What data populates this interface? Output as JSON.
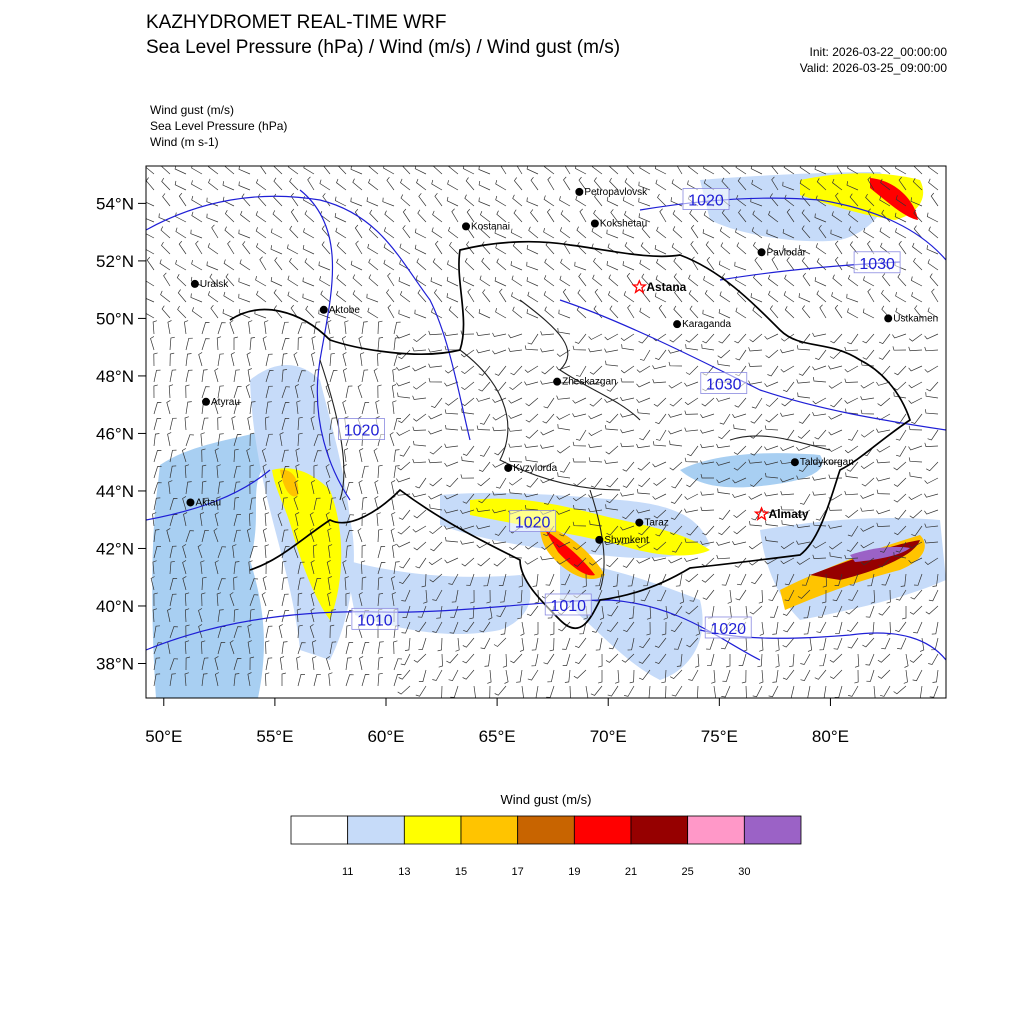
{
  "header": {
    "title": "KAZHYDROMET REAL-TIME WRF",
    "subtitle": "Sea Level Pressure  (hPa) / Wind  (m/s) / Wind gust  (m/s)",
    "init": "Init: 2026-03-22_00:00:00",
    "valid": "Valid: 2026-03-25_09:00:00"
  },
  "fields": {
    "gust": "Wind gust   (m/s)",
    "slp": "Sea Level Pressure   (hPa)",
    "wind": "Wind   (m s-1)"
  },
  "axes": {
    "lat_labels": [
      "54°N",
      "52°N",
      "50°N",
      "48°N",
      "46°N",
      "44°N",
      "42°N",
      "40°N",
      "38°N"
    ],
    "lon_labels": [
      "50°E",
      "55°E",
      "60°E",
      "65°E",
      "70°E",
      "75°E",
      "80°E"
    ],
    "lat_range": [
      36.8,
      55.3
    ],
    "lon_range": [
      49.2,
      85.2
    ]
  },
  "cities": [
    {
      "name": "Petropavlovsk",
      "lon": 68.7,
      "lat": 54.4,
      "capital": false
    },
    {
      "name": "Kostanai",
      "lon": 63.6,
      "lat": 53.2,
      "capital": false
    },
    {
      "name": "Kokshetau",
      "lon": 69.4,
      "lat": 53.3,
      "capital": false
    },
    {
      "name": "Pavlodar",
      "lon": 76.9,
      "lat": 52.3,
      "capital": false
    },
    {
      "name": "Uralsk",
      "lon": 51.4,
      "lat": 51.2,
      "capital": false
    },
    {
      "name": "Astana",
      "lon": 71.4,
      "lat": 51.1,
      "capital": true
    },
    {
      "name": "Ustkamen",
      "lon": 82.6,
      "lat": 50.0,
      "capital": false
    },
    {
      "name": "Aktobe",
      "lon": 57.2,
      "lat": 50.3,
      "capital": false
    },
    {
      "name": "Karaganda",
      "lon": 73.1,
      "lat": 49.8,
      "capital": false
    },
    {
      "name": "Atyrau",
      "lon": 51.9,
      "lat": 47.1,
      "capital": false
    },
    {
      "name": "Zheskazgan",
      "lon": 67.7,
      "lat": 47.8,
      "capital": false
    },
    {
      "name": "Taldykorgan",
      "lon": 78.4,
      "lat": 45.0,
      "capital": false
    },
    {
      "name": "Kyzylorda",
      "lon": 65.5,
      "lat": 44.8,
      "capital": false
    },
    {
      "name": "Aktau",
      "lon": 51.2,
      "lat": 43.6,
      "capital": false
    },
    {
      "name": "Almaty",
      "lon": 76.9,
      "lat": 43.2,
      "capital": true
    },
    {
      "name": "Taraz",
      "lon": 71.4,
      "lat": 42.9,
      "capital": false
    },
    {
      "name": "Shymkent",
      "lon": 69.6,
      "lat": 42.3,
      "capital": false
    }
  ],
  "isobar_labels": [
    {
      "text": "1020",
      "lon": 74.4,
      "lat": 54.1
    },
    {
      "text": "1030",
      "lon": 82.1,
      "lat": 51.9
    },
    {
      "text": "1030",
      "lon": 75.2,
      "lat": 47.7
    },
    {
      "text": "1020",
      "lon": 58.9,
      "lat": 46.1
    },
    {
      "text": "1020",
      "lon": 66.6,
      "lat": 42.9
    },
    {
      "text": "1010",
      "lon": 68.2,
      "lat": 40.0
    },
    {
      "text": "1010",
      "lon": 59.5,
      "lat": 39.5
    },
    {
      "text": "1020",
      "lon": 75.4,
      "lat": 39.2
    }
  ],
  "colorbar": {
    "title": "Wind gust (m/s)",
    "levels": [
      "11",
      "13",
      "15",
      "17",
      "19",
      "21",
      "25",
      "30"
    ],
    "colors": [
      "#ffffff",
      "#c6dbf9",
      "#ffff00",
      "#ffc400",
      "#c86400",
      "#ff0000",
      "#960000",
      "#ff98c8",
      "#9b62c6"
    ]
  },
  "colors": {
    "isobar": "#1f1fd6",
    "land_gust_light": "#c6dbf9",
    "sea": "#a8cff2",
    "border": "#000000"
  }
}
